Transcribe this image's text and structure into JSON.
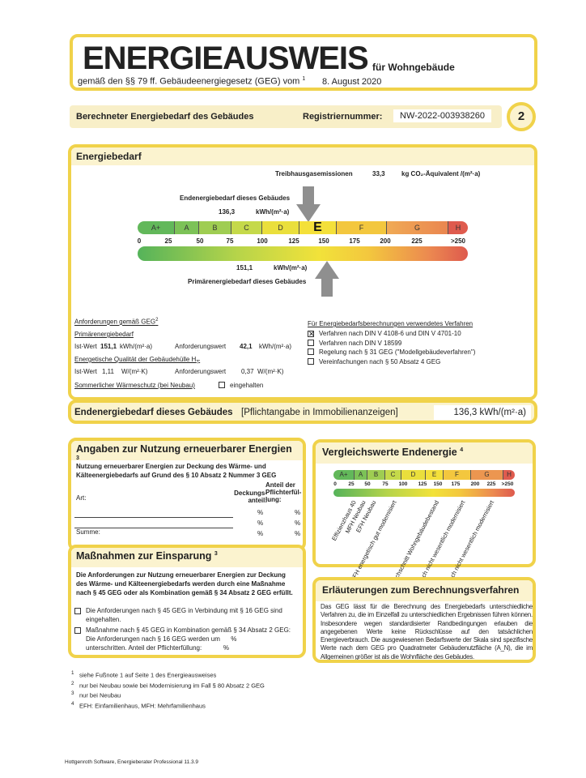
{
  "header": {
    "title": "ENERGIEAUSWEIS",
    "building_type": "für Wohngebäude",
    "subtitle": "gemäß den §§ 79 ff. Gebäudeenergiegesetz (GEG) vom",
    "subtitle_sup": "1",
    "date": "8. August 2020"
  },
  "section_bar": {
    "label": "Berechneter Energiebedarf des Gebäudes",
    "reg_label": "Registriernummer:",
    "reg_value": "NW-2022-003938260",
    "page": "2"
  },
  "energiebedarf": {
    "title": "Energiebedarf",
    "ghg_label": "Treibhausgasemissionen",
    "ghg_value": "33,3",
    "ghg_unit": "kg CO₂-Äquivalent /(m²·a)",
    "end_label": "Endenergiebedarf dieses Gebäudes",
    "end_value": "136,3",
    "end_unit": "kWh/(m²·a)",
    "prim_label": "Primärenergiebedarf dieses Gebäudes",
    "prim_value": "151,1",
    "prim_unit": "kWh/(m²·a)",
    "classes": [
      "A+",
      "A",
      "B",
      "C",
      "D",
      "E",
      "F",
      "G",
      "H"
    ],
    "current_class": "E",
    "ticks": [
      "0",
      "25",
      "50",
      "75",
      "100",
      "125",
      "150",
      "175",
      "200",
      "225",
      ">250"
    ],
    "colors": {
      "A+": "#62b85a",
      "A": "#7cc257",
      "B": "#9fcd52",
      "C": "#c5d94a",
      "D": "#eadf3c",
      "E": "#f4e03a",
      "F": "#f3c73e",
      "G": "#ec9650",
      "H": "#df5b4e"
    }
  },
  "requirements": {
    "title": "Anforderungen gemäß GEG",
    "title_sup": "2",
    "primary_label": "Primärenergiebedarf",
    "ist_label": "Ist-Wert",
    "prim_ist": "151,1",
    "prim_unit": "kWh/(m²·a)",
    "anf_label": "Anforderungswert",
    "prim_anf": "42,1",
    "prim_anf_unit": "kWh/(m²·a)",
    "hull_label": "Energetische Qualität der Gebäudehülle H",
    "hull_sup": "T'",
    "hull_ist": "1,11",
    "hull_unit": "W/(m²·K)",
    "hull_anf": "0,37",
    "hull_anf_unit": "W/(m²·K)",
    "summer_label": "Sommerlicher Wärmeschutz (bei Neubau)",
    "summer_check": "eingehalten"
  },
  "methods": {
    "title": "Für Energiebedarfsberechnungen verwendetes Verfahren",
    "items": [
      {
        "label": "Verfahren nach DIN V 4108-6 und DIN V 4701-10",
        "checked": true
      },
      {
        "label": "Verfahren nach DIN V 18599",
        "checked": false
      },
      {
        "label": "Regelung nach § 31 GEG (\"Modellgebäudeverfahren\")",
        "checked": false
      },
      {
        "label": "Vereinfachungen nach § 50 Absatz 4 GEG",
        "checked": false
      }
    ]
  },
  "end_box": {
    "label": "Endenergiebedarf dieses Gebäudes",
    "note": "[Pflichtangabe in Immobilienanzeigen]",
    "value": "136,3 kWh/(m²·a)"
  },
  "renewables": {
    "title": "Angaben zur Nutzung erneuerbarer Energien",
    "title_sup": "3",
    "intro": "Nutzung erneuerbarer Energien zur Deckung des Wärme- und Kälteenergiebedarfs auf Grund des § 10 Absatz 2 Nummer 3 GEG",
    "col_art": "Art:",
    "col_deckung": "Deckungs-anteil:",
    "col_anteil": "Anteil der Pflichterfül-lung:",
    "percent": "%",
    "sum_label": "Summe:"
  },
  "measures": {
    "title": "Maßnahmen zur Einsparung",
    "title_sup": "3",
    "intro": "Die Anforderungen zur Nutzung erneuerbarer Energien zur Deckung des Wärme- und Kälteenergiebedarfs werden durch eine Maßnahme nach § 45 GEG oder als Kombination gemäß § 34 Absatz 2 GEG erfüllt.",
    "opt1": "Die Anforderungen nach § 45 GEG in Verbindung mit § 16 GEG sind eingehalten.",
    "opt2a": "Maßnahme nach § 45 GEG in Kombination gemäß § 34 Absatz 2 GEG: Die Anforderungen nach § 16 GEG werden um",
    "opt2b": "unterschritten. Anteil der Pflichterfüllung:",
    "percent": "%"
  },
  "comparison": {
    "title": "Vergleichswerte Endenergie",
    "title_sup": "4",
    "labels": [
      "Effizienzhaus 40",
      "MFH Neubau",
      "EFH Neubau",
      "EFH energetisch\ngut modernisiert",
      "Durchschnitt\nWohngebäudebestand",
      "MFH energetisch nicht\nwesentlich modernisiert",
      "EFH energetisch nicht\nwesentlich modernisiert"
    ]
  },
  "explanation": {
    "title": "Erläuterungen zum Berechnungsverfahren",
    "text": "Das GEG lässt für die Berechnung des Energiebedarfs unterschiedliche Verfahren zu, die im Einzelfall zu unterschiedlichen Ergebnissen führen können. Insbesondere wegen standardisierter Randbedingungen erlauben die angegebenen Werte keine Rückschlüsse auf den tatsächlichen Energieverbrauch. Die ausgewiesenen Bedarfswerte der Skala sind spezifische Werte nach dem GEG pro Quadratmeter Gebäudenutzfläche (A_N), die im Allgemeinen größer ist als die Wohnfläche des Gebäudes."
  },
  "footnotes": [
    {
      "n": "1",
      "t": "siehe Fußnote 1 auf Seite 1 des Energieausweises"
    },
    {
      "n": "2",
      "t": "nur bei Neubau sowie bei Modernisierung im Fall § 80 Absatz 2 GEG"
    },
    {
      "n": "3",
      "t": "nur bei Neubau"
    },
    {
      "n": "4",
      "t": "EFH: Einfamilienhaus, MFH: Mehrfamilienhaus"
    }
  ],
  "software": "Hottgenroth Software, Energieberater Professional 11.3.9"
}
